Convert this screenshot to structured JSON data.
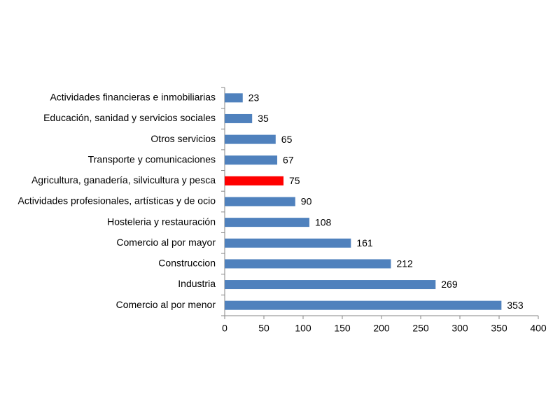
{
  "chart_data": {
    "type": "barh",
    "categories": [
      "Actividades financieras e inmobiliarias",
      "Educación, sanidad y servicios sociales",
      "Otros servicios",
      "Transporte y comunicaciones",
      "Agricultura, ganadería, silvicultura y pesca",
      "Actividades profesionales, artísticas y de ocio",
      "Hosteleria y restauración",
      "Comercio al por mayor",
      "Construccion",
      "Industria",
      "Comercio al por menor"
    ],
    "values": [
      23,
      35,
      65,
      67,
      75,
      90,
      108,
      161,
      212,
      269,
      353
    ],
    "colors": [
      "#4f81bd",
      "#4f81bd",
      "#4f81bd",
      "#4f81bd",
      "#ff0000",
      "#4f81bd",
      "#4f81bd",
      "#4f81bd",
      "#4f81bd",
      "#4f81bd",
      "#4f81bd"
    ],
    "xlim": [
      0,
      400
    ],
    "xticks": [
      0,
      50,
      100,
      150,
      200,
      250,
      300,
      350,
      400
    ],
    "grid": false
  }
}
